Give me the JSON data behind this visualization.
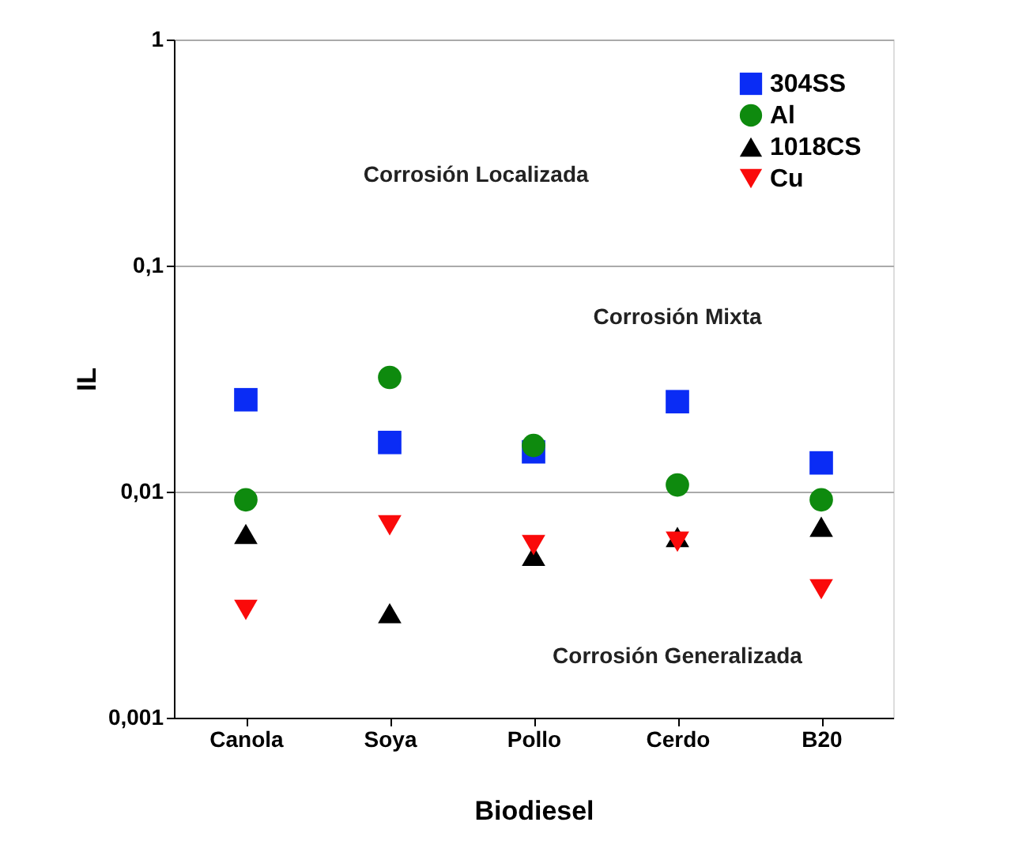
{
  "chart_data": {
    "type": "scatter",
    "xlabel": "Biodiesel",
    "ylabel": "IL",
    "categories": [
      "Canola",
      "Soya",
      "Pollo",
      "Cerdo",
      "B20"
    ],
    "series": [
      {
        "name": "304SS",
        "color": "#0a2cf5",
        "marker": "square",
        "values": [
          0.0255,
          0.0165,
          0.015,
          0.025,
          0.0134
        ]
      },
      {
        "name": "Al",
        "color": "#0e8a0e",
        "marker": "circle",
        "values": [
          0.0092,
          0.032,
          0.016,
          0.0107,
          0.0092
        ]
      },
      {
        "name": "1018CS",
        "color": "#000000",
        "marker": "triangle",
        "values": [
          0.0065,
          0.0029,
          0.0052,
          0.0063,
          0.007
        ]
      },
      {
        "name": "Cu",
        "color": "#fa0a0a",
        "marker": "triangle-down",
        "values": [
          0.003,
          0.0071,
          0.0058,
          0.006,
          0.0037
        ]
      }
    ],
    "log": "y",
    "ylim": [
      0.001,
      1
    ],
    "yticks": [
      {
        "value": 0.001,
        "label": "0,001"
      },
      {
        "value": 0.01,
        "label": "0,01"
      },
      {
        "value": 0.1,
        "label": "0,1"
      },
      {
        "value": 1,
        "label": "1"
      }
    ],
    "grid": "y",
    "legend": "top right",
    "annotations": [
      "Corrosión Localizada",
      "Corrosión Mixta",
      "Corrosión Generalizada"
    ]
  }
}
